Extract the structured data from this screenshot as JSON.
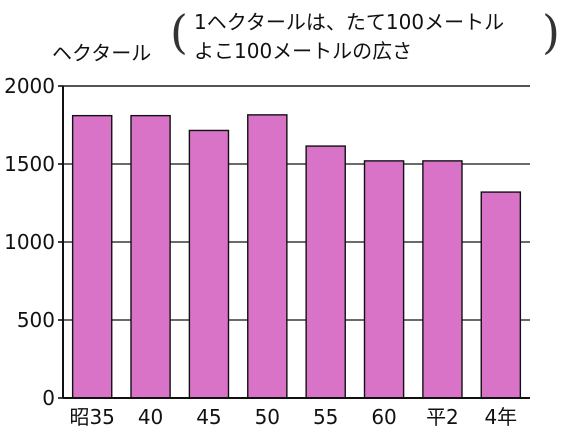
{
  "header": {
    "unit_label": "ヘクタール",
    "note_line1": "1ヘクタールは、たて100メートル",
    "note_line2": "よこ100メートルの広さ"
  },
  "chart_data": {
    "type": "bar",
    "categories": [
      "昭35",
      "40",
      "45",
      "50",
      "55",
      "60",
      "平2",
      "4年"
    ],
    "values": [
      1810,
      1810,
      1715,
      1815,
      1615,
      1520,
      1520,
      1320
    ],
    "ylim": [
      0,
      2000
    ],
    "yticks": [
      0,
      500,
      1000,
      1500,
      2000
    ],
    "grid": true,
    "colors": {
      "bar": "#d873c8",
      "bar_edge": "#111111",
      "grid": "#111111"
    }
  }
}
